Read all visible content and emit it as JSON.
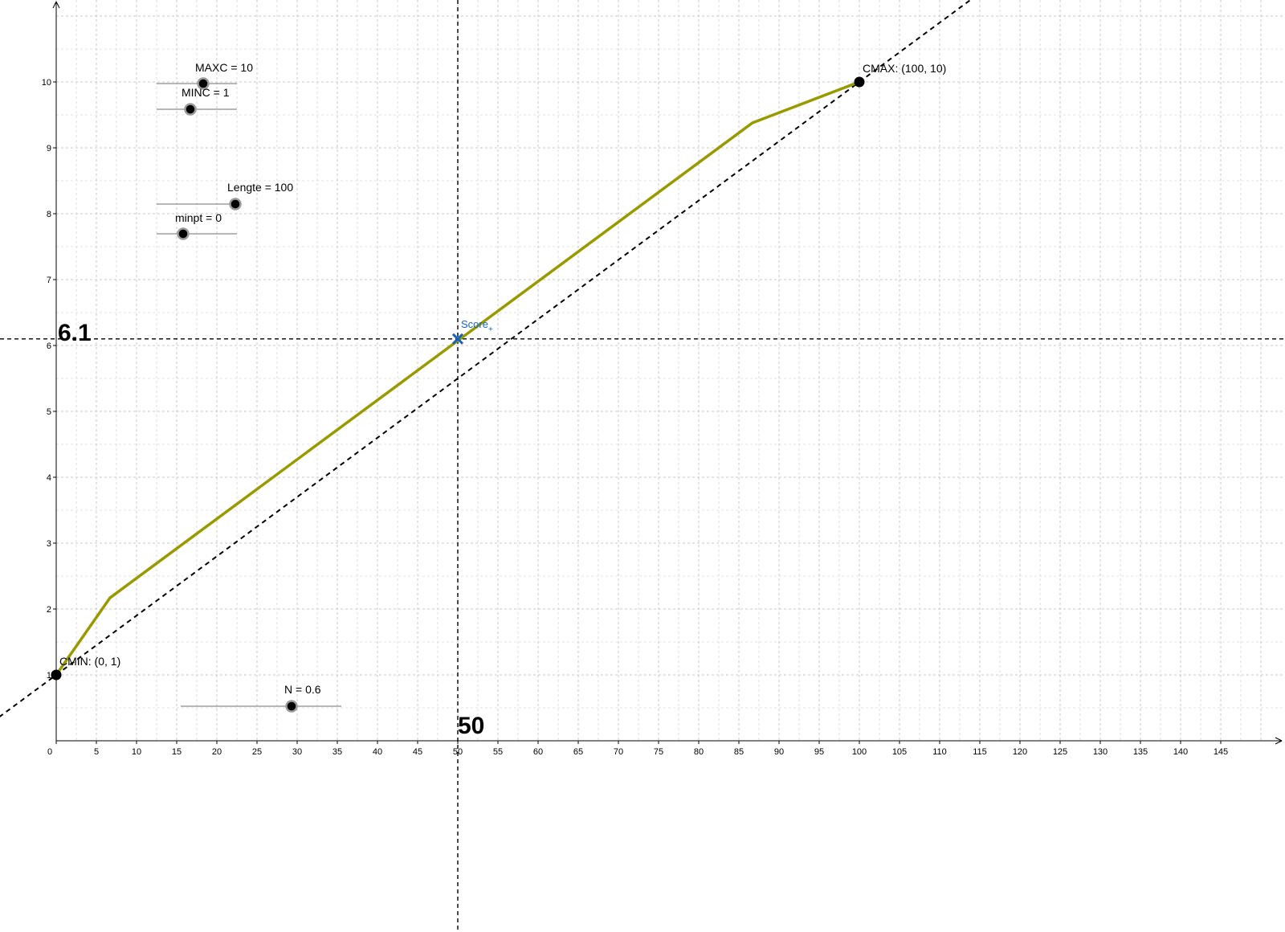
{
  "chart_data": {
    "type": "line",
    "xlim": [
      -1,
      150
    ],
    "ylim": [
      0,
      11
    ],
    "grid": true,
    "x_ticks": [
      0,
      5,
      10,
      15,
      20,
      25,
      30,
      35,
      40,
      45,
      50,
      55,
      60,
      65,
      70,
      75,
      80,
      85,
      90,
      95,
      100,
      105,
      110,
      115,
      120,
      125,
      130,
      135,
      140,
      145
    ],
    "y_ticks": [
      1,
      2,
      3,
      4,
      5,
      6,
      7,
      8,
      9,
      10
    ],
    "curve": {
      "color": "#999900",
      "x": [
        0,
        6.7,
        86.7,
        100
      ],
      "y": [
        1,
        2.17,
        9.38,
        10
      ]
    },
    "reference_line": {
      "x1": 0,
      "y1": 1,
      "x2": 100,
      "y2": 10,
      "style": "dashed"
    },
    "guide_x": 50,
    "guide_y": 6.1,
    "points": [
      {
        "name": "CMIN",
        "label": "CMIN: (0, 1)",
        "x": 0,
        "y": 1
      },
      {
        "name": "CMAX",
        "label": "CMAX: (100, 10)",
        "x": 100,
        "y": 10
      }
    ],
    "score": {
      "label": "Score",
      "subscript": "+",
      "x": 50,
      "y": 6.1,
      "color": "#1565c0"
    },
    "guide_labels": {
      "x": "50",
      "y": "6.1"
    }
  },
  "sliders": [
    {
      "id": "maxc",
      "label": "MAXC = 10",
      "min": 1,
      "max": 10,
      "value": 10,
      "knob_fraction": 0.58
    },
    {
      "id": "minc",
      "label": "MINC = 1",
      "min": 0,
      "max": 10,
      "value": 1,
      "knob_fraction": 0.42
    },
    {
      "id": "lengte",
      "label": "Lengte = 100",
      "min": 0,
      "max": 100,
      "value": 100,
      "knob_fraction": 0.98
    },
    {
      "id": "minpt",
      "label": "minpt = 0",
      "min": 0,
      "max": 10,
      "value": 0,
      "knob_fraction": 0.33
    },
    {
      "id": "n",
      "label": "N = 0.6",
      "min": 0,
      "max": 1,
      "value": 0.6,
      "knob_fraction": 0.69
    }
  ]
}
